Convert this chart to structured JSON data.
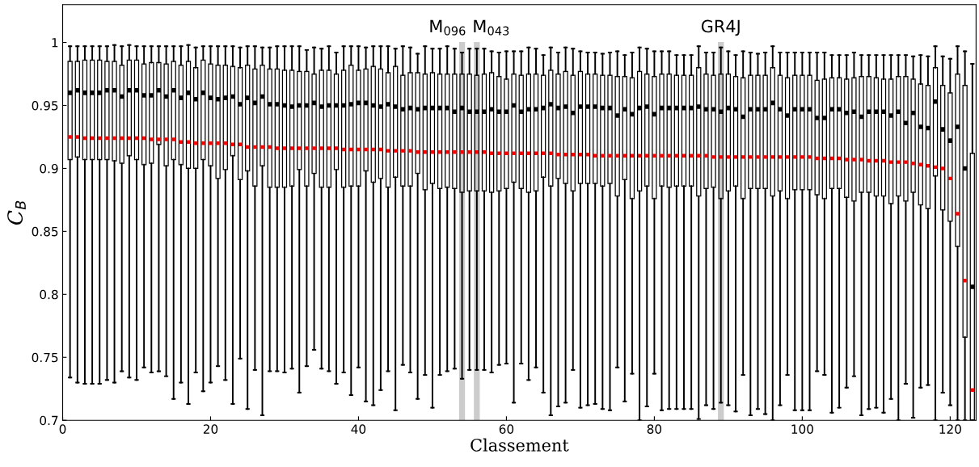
{
  "chart_data": {
    "type": "box",
    "xlabel": "Classement",
    "ylabel": "C$_{B}$",
    "xlim": [
      0,
      123.5
    ],
    "xticks": [
      0,
      20,
      40,
      60,
      80,
      100,
      120
    ],
    "ylim": [
      0.7,
      1.03
    ],
    "yticks": [
      0.7,
      0.75,
      0.8,
      0.85,
      0.9,
      0.95,
      1
    ],
    "bands": [
      {
        "axis": "x",
        "from": 53.6,
        "to": 54.4,
        "label": "M$_{096}$",
        "color": "#cccccc"
      },
      {
        "axis": "x",
        "from": 55.6,
        "to": 56.4,
        "label": "M$_{043}$",
        "color": "#cccccc"
      },
      {
        "axis": "x",
        "from": 88.6,
        "to": 89.4,
        "label": "GR4J",
        "color": "#cccccc"
      }
    ],
    "x": [
      1,
      2,
      3,
      4,
      5,
      6,
      7,
      8,
      9,
      10,
      11,
      12,
      13,
      14,
      15,
      16,
      17,
      18,
      19,
      20,
      21,
      22,
      23,
      24,
      25,
      26,
      27,
      28,
      29,
      30,
      31,
      32,
      33,
      34,
      35,
      36,
      37,
      38,
      39,
      40,
      41,
      42,
      43,
      44,
      45,
      46,
      47,
      48,
      49,
      50,
      51,
      52,
      53,
      54,
      55,
      56,
      57,
      58,
      59,
      60,
      61,
      62,
      63,
      64,
      65,
      66,
      67,
      68,
      69,
      70,
      71,
      72,
      73,
      74,
      75,
      76,
      77,
      78,
      79,
      80,
      81,
      82,
      83,
      84,
      85,
      86,
      87,
      88,
      89,
      90,
      91,
      92,
      93,
      94,
      95,
      96,
      97,
      98,
      99,
      100,
      101,
      102,
      103,
      104,
      105,
      106,
      107,
      108,
      109,
      110,
      111,
      112,
      113,
      114,
      115,
      116,
      117,
      118,
      119,
      120,
      121,
      122,
      123
    ],
    "series": [
      {
        "color": "#000000",
        "boxes": [
          {
            "low": 0.734,
            "q1": 0.907,
            "median": 0.96,
            "q3": 0.985,
            "high": 0.997,
            "mean": 0.925
          },
          {
            "low": 0.73,
            "q1": 0.909,
            "median": 0.962,
            "q3": 0.985,
            "high": 0.997,
            "mean": 0.925
          },
          {
            "low": 0.729,
            "q1": 0.907,
            "median": 0.96,
            "q3": 0.986,
            "high": 0.997,
            "mean": 0.924
          },
          {
            "low": 0.729,
            "q1": 0.907,
            "median": 0.96,
            "q3": 0.986,
            "high": 0.997,
            "mean": 0.924
          },
          {
            "low": 0.729,
            "q1": 0.907,
            "median": 0.96,
            "q3": 0.986,
            "high": 0.997,
            "mean": 0.924
          },
          {
            "low": 0.732,
            "q1": 0.907,
            "median": 0.962,
            "q3": 0.985,
            "high": 0.997,
            "mean": 0.924
          },
          {
            "low": 0.73,
            "q1": 0.906,
            "median": 0.962,
            "q3": 0.985,
            "high": 0.998,
            "mean": 0.924
          },
          {
            "low": 0.739,
            "q1": 0.904,
            "median": 0.957,
            "q3": 0.982,
            "high": 0.997,
            "mean": 0.924
          },
          {
            "low": 0.734,
            "q1": 0.91,
            "median": 0.962,
            "q3": 0.986,
            "high": 0.998,
            "mean": 0.924
          },
          {
            "low": 0.732,
            "q1": 0.907,
            "median": 0.962,
            "q3": 0.986,
            "high": 0.997,
            "mean": 0.924
          },
          {
            "low": 0.742,
            "q1": 0.903,
            "median": 0.958,
            "q3": 0.983,
            "high": 0.997,
            "mean": 0.924
          },
          {
            "low": 0.738,
            "q1": 0.904,
            "median": 0.958,
            "q3": 0.984,
            "high": 0.997,
            "mean": 0.923
          },
          {
            "low": 0.739,
            "q1": 0.919,
            "median": 0.962,
            "q3": 0.984,
            "high": 0.997,
            "mean": 0.923
          },
          {
            "low": 0.735,
            "q1": 0.902,
            "median": 0.957,
            "q3": 0.983,
            "high": 0.997,
            "mean": 0.923
          },
          {
            "low": 0.717,
            "q1": 0.907,
            "median": 0.962,
            "q3": 0.985,
            "high": 0.997,
            "mean": 0.923
          },
          {
            "low": 0.73,
            "q1": 0.903,
            "median": 0.956,
            "q3": 0.982,
            "high": 0.997,
            "mean": 0.921
          },
          {
            "low": 0.713,
            "q1": 0.9,
            "median": 0.96,
            "q3": 0.985,
            "high": 0.998,
            "mean": 0.921
          },
          {
            "low": 0.738,
            "q1": 0.9,
            "median": 0.955,
            "q3": 0.98,
            "high": 0.996,
            "mean": 0.92
          },
          {
            "low": 0.723,
            "q1": 0.907,
            "median": 0.96,
            "q3": 0.986,
            "high": 0.997,
            "mean": 0.92
          },
          {
            "low": 0.73,
            "q1": 0.902,
            "median": 0.956,
            "q3": 0.983,
            "high": 0.997,
            "mean": 0.92
          },
          {
            "low": 0.743,
            "q1": 0.892,
            "median": 0.955,
            "q3": 0.982,
            "high": 0.997,
            "mean": 0.92
          },
          {
            "low": 0.732,
            "q1": 0.899,
            "median": 0.956,
            "q3": 0.982,
            "high": 0.997,
            "mean": 0.92
          },
          {
            "low": 0.713,
            "q1": 0.91,
            "median": 0.957,
            "q3": 0.981,
            "high": 0.997,
            "mean": 0.919
          },
          {
            "low": 0.749,
            "q1": 0.891,
            "median": 0.951,
            "q3": 0.98,
            "high": 0.996,
            "mean": 0.919
          },
          {
            "low": 0.709,
            "q1": 0.898,
            "median": 0.956,
            "q3": 0.982,
            "high": 0.997,
            "mean": 0.917
          },
          {
            "low": 0.74,
            "q1": 0.886,
            "median": 0.952,
            "q3": 0.979,
            "high": 0.997,
            "mean": 0.917
          },
          {
            "low": 0.704,
            "q1": 0.902,
            "median": 0.957,
            "q3": 0.982,
            "high": 0.996,
            "mean": 0.917
          },
          {
            "low": 0.739,
            "q1": 0.885,
            "median": 0.951,
            "q3": 0.979,
            "high": 0.996,
            "mean": 0.917
          },
          {
            "low": 0.739,
            "q1": 0.885,
            "median": 0.951,
            "q3": 0.979,
            "high": 0.997,
            "mean": 0.916
          },
          {
            "low": 0.738,
            "q1": 0.885,
            "median": 0.95,
            "q3": 0.978,
            "high": 0.997,
            "mean": 0.916
          },
          {
            "low": 0.741,
            "q1": 0.886,
            "median": 0.949,
            "q3": 0.978,
            "high": 0.997,
            "mean": 0.916
          },
          {
            "low": 0.722,
            "q1": 0.899,
            "median": 0.95,
            "q3": 0.977,
            "high": 0.997,
            "mean": 0.916
          },
          {
            "low": 0.743,
            "q1": 0.886,
            "median": 0.95,
            "q3": 0.977,
            "high": 0.994,
            "mean": 0.916
          },
          {
            "low": 0.756,
            "q1": 0.896,
            "median": 0.952,
            "q3": 0.975,
            "high": 0.996,
            "mean": 0.916
          },
          {
            "low": 0.741,
            "q1": 0.885,
            "median": 0.949,
            "q3": 0.978,
            "high": 0.995,
            "mean": 0.916
          },
          {
            "low": 0.739,
            "q1": 0.885,
            "median": 0.95,
            "q3": 0.978,
            "high": 0.997,
            "mean": 0.916
          },
          {
            "low": 0.729,
            "q1": 0.899,
            "median": 0.95,
            "q3": 0.975,
            "high": 0.992,
            "mean": 0.916
          },
          {
            "low": 0.738,
            "q1": 0.885,
            "median": 0.95,
            "q3": 0.978,
            "high": 0.997,
            "mean": 0.915
          },
          {
            "low": 0.72,
            "q1": 0.886,
            "median": 0.951,
            "q3": 0.982,
            "high": 0.997,
            "mean": 0.915
          },
          {
            "low": 0.742,
            "q1": 0.886,
            "median": 0.952,
            "q3": 0.978,
            "high": 0.997,
            "mean": 0.915
          },
          {
            "low": 0.715,
            "q1": 0.898,
            "median": 0.952,
            "q3": 0.979,
            "high": 0.996,
            "mean": 0.915
          },
          {
            "low": 0.712,
            "q1": 0.889,
            "median": 0.95,
            "q3": 0.981,
            "high": 0.997,
            "mean": 0.915
          },
          {
            "low": 0.724,
            "q1": 0.892,
            "median": 0.949,
            "q3": 0.979,
            "high": 0.997,
            "mean": 0.915
          },
          {
            "low": 0.739,
            "q1": 0.885,
            "median": 0.951,
            "q3": 0.976,
            "high": 0.997,
            "mean": 0.914
          },
          {
            "low": 0.708,
            "q1": 0.893,
            "median": 0.949,
            "q3": 0.981,
            "high": 0.995,
            "mean": 0.914
          },
          {
            "low": 0.744,
            "q1": 0.886,
            "median": 0.947,
            "q3": 0.974,
            "high": 0.997,
            "mean": 0.914
          },
          {
            "low": 0.738,
            "q1": 0.886,
            "median": 0.948,
            "q3": 0.976,
            "high": 0.996,
            "mean": 0.914
          },
          {
            "low": 0.717,
            "q1": 0.896,
            "median": 0.947,
            "q3": 0.976,
            "high": 0.991,
            "mean": 0.913
          },
          {
            "low": 0.736,
            "q1": 0.883,
            "median": 0.948,
            "q3": 0.975,
            "high": 0.997,
            "mean": 0.913
          },
          {
            "low": 0.71,
            "q1": 0.888,
            "median": 0.948,
            "q3": 0.976,
            "high": 0.995,
            "mean": 0.913
          },
          {
            "low": 0.736,
            "q1": 0.884,
            "median": 0.948,
            "q3": 0.975,
            "high": 0.995,
            "mean": 0.913
          },
          {
            "low": 0.739,
            "q1": 0.885,
            "median": 0.948,
            "q3": 0.975,
            "high": 0.997,
            "mean": 0.913
          },
          {
            "low": 0.741,
            "q1": 0.884,
            "median": 0.945,
            "q3": 0.975,
            "high": 0.995,
            "mean": 0.913
          },
          {
            "low": 0.733,
            "q1": 0.881,
            "median": 0.948,
            "q3": 0.975,
            "high": 0.992,
            "mean": 0.913
          },
          {
            "low": 0.74,
            "q1": 0.882,
            "median": 0.945,
            "q3": 0.975,
            "high": 0.995,
            "mean": 0.913
          },
          {
            "low": 0.74,
            "q1": 0.882,
            "median": 0.945,
            "q3": 0.974,
            "high": 0.995,
            "mean": 0.913
          },
          {
            "low": 0.74,
            "q1": 0.882,
            "median": 0.945,
            "q3": 0.975,
            "high": 0.995,
            "mean": 0.913
          },
          {
            "low": 0.738,
            "q1": 0.881,
            "median": 0.947,
            "q3": 0.976,
            "high": 0.993,
            "mean": 0.912
          },
          {
            "low": 0.744,
            "q1": 0.882,
            "median": 0.945,
            "q3": 0.973,
            "high": 0.992,
            "mean": 0.912
          },
          {
            "low": 0.745,
            "q1": 0.884,
            "median": 0.945,
            "q3": 0.971,
            "high": 0.993,
            "mean": 0.912
          },
          {
            "low": 0.714,
            "q1": 0.889,
            "median": 0.95,
            "q3": 0.975,
            "high": 0.993,
            "mean": 0.912
          },
          {
            "low": 0.745,
            "q1": 0.884,
            "median": 0.945,
            "q3": 0.974,
            "high": 0.993,
            "mean": 0.912
          },
          {
            "low": 0.732,
            "q1": 0.881,
            "median": 0.947,
            "q3": 0.975,
            "high": 0.996,
            "mean": 0.912
          },
          {
            "low": 0.742,
            "q1": 0.882,
            "median": 0.947,
            "q3": 0.975,
            "high": 0.995,
            "mean": 0.912
          },
          {
            "low": 0.722,
            "q1": 0.893,
            "median": 0.948,
            "q3": 0.974,
            "high": 0.99,
            "mean": 0.912
          },
          {
            "low": 0.704,
            "q1": 0.886,
            "median": 0.951,
            "q3": 0.978,
            "high": 0.996,
            "mean": 0.912
          },
          {
            "low": 0.711,
            "q1": 0.892,
            "median": 0.948,
            "q3": 0.975,
            "high": 0.992,
            "mean": 0.911
          },
          {
            "low": 0.714,
            "q1": 0.888,
            "median": 0.949,
            "q3": 0.977,
            "high": 0.996,
            "mean": 0.911
          },
          {
            "low": 0.74,
            "q1": 0.882,
            "median": 0.944,
            "q3": 0.974,
            "high": 0.995,
            "mean": 0.911
          },
          {
            "low": 0.71,
            "q1": 0.888,
            "median": 0.949,
            "q3": 0.977,
            "high": 0.993,
            "mean": 0.911
          },
          {
            "low": 0.712,
            "q1": 0.888,
            "median": 0.949,
            "q3": 0.975,
            "high": 0.992,
            "mean": 0.911
          },
          {
            "low": 0.713,
            "q1": 0.888,
            "median": 0.949,
            "q3": 0.975,
            "high": 0.992,
            "mean": 0.91
          },
          {
            "low": 0.709,
            "q1": 0.886,
            "median": 0.948,
            "q3": 0.974,
            "high": 0.991,
            "mean": 0.91
          },
          {
            "low": 0.708,
            "q1": 0.888,
            "median": 0.948,
            "q3": 0.974,
            "high": 0.992,
            "mean": 0.91
          },
          {
            "low": 0.742,
            "q1": 0.878,
            "median": 0.942,
            "q3": 0.973,
            "high": 0.993,
            "mean": 0.91
          },
          {
            "low": 0.715,
            "q1": 0.891,
            "median": 0.947,
            "q3": 0.973,
            "high": 0.99,
            "mean": 0.91
          },
          {
            "low": 0.737,
            "q1": 0.876,
            "median": 0.943,
            "q3": 0.972,
            "high": 0.992,
            "mean": 0.91
          },
          {
            "low": 0.7,
            "q1": 0.882,
            "median": 0.948,
            "q3": 0.977,
            "high": 0.996,
            "mean": 0.91
          },
          {
            "low": 0.711,
            "q1": 0.886,
            "median": 0.949,
            "q3": 0.975,
            "high": 0.995,
            "mean": 0.91
          },
          {
            "low": 0.737,
            "q1": 0.876,
            "median": 0.943,
            "q3": 0.973,
            "high": 0.993,
            "mean": 0.91
          },
          {
            "low": 0.708,
            "q1": 0.886,
            "median": 0.948,
            "q3": 0.975,
            "high": 0.993,
            "mean": 0.91
          },
          {
            "low": 0.709,
            "q1": 0.885,
            "median": 0.948,
            "q3": 0.975,
            "high": 0.993,
            "mean": 0.91
          },
          {
            "low": 0.709,
            "q1": 0.886,
            "median": 0.948,
            "q3": 0.974,
            "high": 0.99,
            "mean": 0.91
          },
          {
            "low": 0.709,
            "q1": 0.886,
            "median": 0.948,
            "q3": 0.974,
            "high": 0.99,
            "mean": 0.91
          },
          {
            "low": 0.709,
            "q1": 0.886,
            "median": 0.948,
            "q3": 0.974,
            "high": 0.99,
            "mean": 0.91
          },
          {
            "low": 0.701,
            "q1": 0.878,
            "median": 0.949,
            "q3": 0.98,
            "high": 0.997,
            "mean": 0.91
          },
          {
            "low": 0.712,
            "q1": 0.884,
            "median": 0.947,
            "q3": 0.975,
            "high": 0.992,
            "mean": 0.91
          },
          {
            "low": 0.709,
            "q1": 0.885,
            "median": 0.947,
            "q3": 0.974,
            "high": 0.992,
            "mean": 0.909
          },
          {
            "low": 0.714,
            "q1": 0.876,
            "median": 0.945,
            "q3": 0.975,
            "high": 0.996,
            "mean": 0.909
          },
          {
            "low": 0.712,
            "q1": 0.882,
            "median": 0.948,
            "q3": 0.975,
            "high": 0.993,
            "mean": 0.909
          },
          {
            "low": 0.707,
            "q1": 0.886,
            "median": 0.947,
            "q3": 0.973,
            "high": 0.99,
            "mean": 0.909
          },
          {
            "low": 0.736,
            "q1": 0.876,
            "median": 0.941,
            "q3": 0.972,
            "high": 0.993,
            "mean": 0.909
          },
          {
            "low": 0.704,
            "q1": 0.884,
            "median": 0.947,
            "q3": 0.974,
            "high": 0.992,
            "mean": 0.909
          },
          {
            "low": 0.709,
            "q1": 0.884,
            "median": 0.947,
            "q3": 0.974,
            "high": 0.991,
            "mean": 0.909
          },
          {
            "low": 0.705,
            "q1": 0.884,
            "median": 0.947,
            "q3": 0.974,
            "high": 0.992,
            "mean": 0.909
          },
          {
            "low": 0.7,
            "q1": 0.878,
            "median": 0.952,
            "q3": 0.98,
            "high": 0.997,
            "mean": 0.909
          },
          {
            "low": 0.712,
            "q1": 0.882,
            "median": 0.947,
            "q3": 0.974,
            "high": 0.992,
            "mean": 0.909
          },
          {
            "low": 0.736,
            "q1": 0.876,
            "median": 0.942,
            "q3": 0.972,
            "high": 0.992,
            "mean": 0.909
          },
          {
            "low": 0.708,
            "q1": 0.883,
            "median": 0.947,
            "q3": 0.974,
            "high": 0.992,
            "mean": 0.909
          },
          {
            "low": 0.708,
            "q1": 0.883,
            "median": 0.947,
            "q3": 0.974,
            "high": 0.992,
            "mean": 0.909
          },
          {
            "low": 0.708,
            "q1": 0.883,
            "median": 0.947,
            "q3": 0.974,
            "high": 0.992,
            "mean": 0.909
          },
          {
            "low": 0.739,
            "q1": 0.879,
            "median": 0.94,
            "q3": 0.97,
            "high": 0.992,
            "mean": 0.908
          },
          {
            "low": 0.736,
            "q1": 0.876,
            "median": 0.94,
            "q3": 0.971,
            "high": 0.992,
            "mean": 0.908
          },
          {
            "low": 0.706,
            "q1": 0.884,
            "median": 0.947,
            "q3": 0.972,
            "high": 0.99,
            "mean": 0.908
          },
          {
            "low": 0.71,
            "q1": 0.884,
            "median": 0.947,
            "q3": 0.972,
            "high": 0.99,
            "mean": 0.908
          },
          {
            "low": 0.726,
            "q1": 0.877,
            "median": 0.944,
            "q3": 0.971,
            "high": 0.99,
            "mean": 0.907
          },
          {
            "low": 0.735,
            "q1": 0.874,
            "median": 0.945,
            "q3": 0.972,
            "high": 0.992,
            "mean": 0.907
          },
          {
            "low": 0.704,
            "q1": 0.881,
            "median": 0.941,
            "q3": 0.973,
            "high": 0.99,
            "mean": 0.907
          },
          {
            "low": 0.709,
            "q1": 0.881,
            "median": 0.945,
            "q3": 0.973,
            "high": 0.99,
            "mean": 0.906
          },
          {
            "low": 0.71,
            "q1": 0.878,
            "median": 0.945,
            "q3": 0.972,
            "high": 0.99,
            "mean": 0.906
          },
          {
            "low": 0.706,
            "q1": 0.878,
            "median": 0.945,
            "q3": 0.971,
            "high": 0.99,
            "mean": 0.906
          },
          {
            "low": 0.717,
            "q1": 0.872,
            "median": 0.942,
            "q3": 0.971,
            "high": 0.99,
            "mean": 0.905
          },
          {
            "low": 0.7,
            "q1": 0.878,
            "median": 0.945,
            "q3": 0.973,
            "high": 0.99,
            "mean": 0.905
          },
          {
            "low": 0.729,
            "q1": 0.874,
            "median": 0.936,
            "q3": 0.973,
            "high": 0.99,
            "mean": 0.905
          },
          {
            "low": 0.702,
            "q1": 0.881,
            "median": 0.944,
            "q3": 0.971,
            "high": 0.989,
            "mean": 0.904
          },
          {
            "low": 0.726,
            "q1": 0.871,
            "median": 0.933,
            "q3": 0.967,
            "high": 0.99,
            "mean": 0.903
          },
          {
            "low": 0.728,
            "q1": 0.868,
            "median": 0.932,
            "q3": 0.966,
            "high": 0.989,
            "mean": 0.902
          },
          {
            "low": 0.7,
            "q1": 0.894,
            "median": 0.953,
            "q3": 0.98,
            "high": 0.997,
            "mean": 0.901
          },
          {
            "low": 0.722,
            "q1": 0.867,
            "median": 0.931,
            "q3": 0.966,
            "high": 0.989,
            "mean": 0.9
          },
          {
            "low": 0.712,
            "q1": 0.858,
            "median": 0.922,
            "q3": 0.96,
            "high": 0.987,
            "mean": 0.892
          },
          {
            "low": 0.7,
            "q1": 0.838,
            "median": 0.933,
            "q3": 0.975,
            "high": 0.997,
            "mean": 0.864
          },
          {
            "low": 0.7,
            "q1": 0.766,
            "median": 0.9,
            "q3": 0.966,
            "high": 0.993,
            "mean": 0.811
          },
          {
            "low": 0.7,
            "q1": 0.7,
            "median": 0.806,
            "q3": 0.912,
            "high": 0.983,
            "mean": 0.724
          }
        ]
      }
    ]
  }
}
